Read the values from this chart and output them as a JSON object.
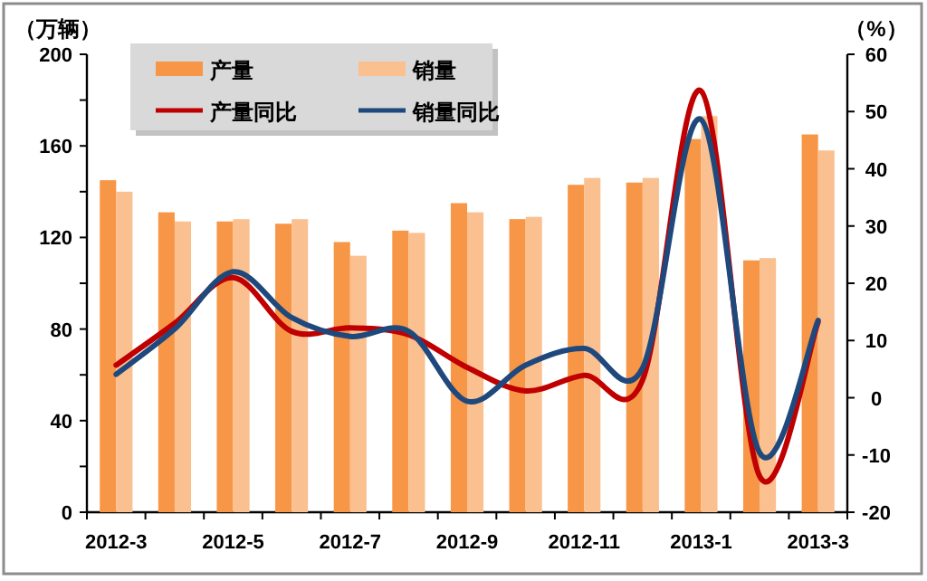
{
  "chart_data": {
    "type": "bar",
    "ylabel": "（万辆）",
    "y2label": "（%）",
    "categories": [
      "2012-3",
      null,
      "2012-5",
      null,
      "2012-7",
      null,
      "2012-9",
      null,
      "2012-11",
      null,
      "2013-1",
      null,
      "2013-3"
    ],
    "series": [
      {
        "name": "产量",
        "color": "#f79646",
        "values": [
          145,
          131,
          127,
          126,
          118,
          123,
          135,
          128,
          143,
          144,
          163,
          110,
          165
        ]
      },
      {
        "name": "销量",
        "color": "#fac090",
        "values": [
          140,
          127,
          128,
          128,
          112,
          122,
          131,
          129,
          146,
          146,
          173,
          111,
          158
        ]
      },
      {
        "name": "产量同比",
        "type": "line",
        "axis": "y2",
        "color": "#c00000",
        "values": [
          5.7,
          13,
          21,
          11.6,
          12.2,
          11,
          5.3,
          1.2,
          3.9,
          3.1,
          53.6,
          -13.7,
          13.2
        ]
      },
      {
        "name": "销量同比",
        "type": "line",
        "axis": "y2",
        "color": "#1f497d",
        "values": [
          4.1,
          12,
          22,
          14,
          10.7,
          11.6,
          -0.6,
          5.7,
          8.6,
          5.2,
          48.6,
          -9.6,
          13.5
        ]
      }
    ],
    "ylim": [
      0,
      200
    ],
    "yticks": [
      0,
      {
        "value": 20,
        "label": null
      },
      40,
      {
        "value": 60,
        "label": null
      },
      80,
      {
        "value": 100,
        "label": null
      },
      120,
      {
        "value": 140,
        "label": null
      },
      160,
      {
        "value": 180,
        "label": null
      },
      200
    ],
    "y2lim": [
      -20,
      60
    ],
    "y2ticks": [
      -20,
      -10,
      0,
      10,
      20,
      30,
      40,
      50,
      60
    ],
    "legend": "top left",
    "grid": false,
    "line_style": "solid",
    "marker": "none"
  }
}
